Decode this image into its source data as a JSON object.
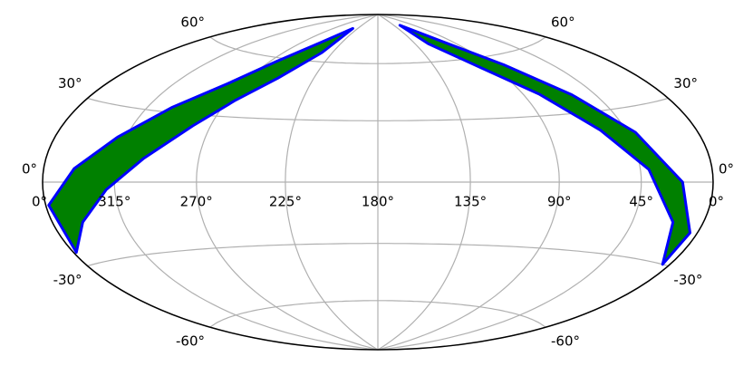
{
  "chart_data": {
    "type": "map",
    "projection": "hammer",
    "lonticks": [
      {
        "value": 360,
        "label": "0°"
      },
      {
        "value": 315,
        "label": "315°"
      },
      {
        "value": 270,
        "label": "270°"
      },
      {
        "value": 225,
        "label": "225°"
      },
      {
        "value": 180,
        "label": "180°"
      },
      {
        "value": 135,
        "label": "135°"
      },
      {
        "value": 90,
        "label": "90°"
      },
      {
        "value": 45,
        "label": "45°"
      },
      {
        "value": 0,
        "label": "0°"
      }
    ],
    "latticks": [
      {
        "value": -60,
        "label": "-60°"
      },
      {
        "value": -30,
        "label": "-30°"
      },
      {
        "value": 0,
        "label": "0°"
      },
      {
        "value": 30,
        "label": "30°"
      },
      {
        "value": 60,
        "label": "60°"
      }
    ],
    "grid": true,
    "series": [
      {
        "color": "#008000",
        "edgecolor": "#0000ff",
        "lon": [
          358,
          340,
          320,
          300,
          280,
          265,
          250,
          235
        ],
        "lat_min": [
          -25,
          -15,
          -3,
          10,
          25,
          38,
          50,
          65
        ],
        "lat_max": [
          -8,
          5,
          18,
          32,
          45,
          58,
          70,
          80
        ]
      },
      {
        "color": "#008000",
        "edgecolor": "#0000ff",
        "lon": [
          120,
          100,
          80,
          60,
          40,
          20,
          5
        ],
        "lat_min": [
          70,
          55,
          40,
          22,
          5,
          -15,
          -30
        ],
        "lat_max": [
          82,
          70,
          55,
          38,
          20,
          0,
          -18
        ]
      }
    ]
  }
}
